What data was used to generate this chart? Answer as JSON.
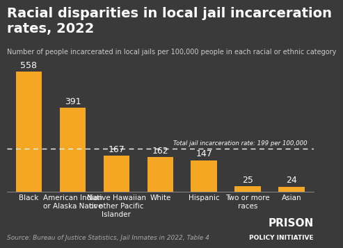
{
  "title": "Racial disparities in local jail incarceration rates, 2022",
  "subtitle": "Number of people incarcerated in local jails per 100,000 people in each racial or ethnic category",
  "categories": [
    "Black",
    "American Indian\nor Alaska Native",
    "Native Hawaiian\nor other Pacific\nIslander",
    "White",
    "Hispanic",
    "Two or more\nraces",
    "Asian"
  ],
  "values": [
    558,
    391,
    167,
    162,
    147,
    25,
    24
  ],
  "bar_color": "#F5A623",
  "background_color": "#3a3a3a",
  "text_color": "#ffffff",
  "dashed_line_y": 199,
  "dashed_line_label": "Total jail incarceration rate: 199 per 100,000",
  "source_text": "Source: Bureau of Justice Statistics, Jail Inmates in 2022, Table 4",
  "watermark_line1": "PRISON",
  "watermark_line2": "POLICY INITIATIVE",
  "ylim": [
    0,
    620
  ],
  "value_label_fontsize": 9,
  "category_fontsize": 7.5,
  "title_fontsize": 14,
  "subtitle_fontsize": 7,
  "source_fontsize": 6.5
}
